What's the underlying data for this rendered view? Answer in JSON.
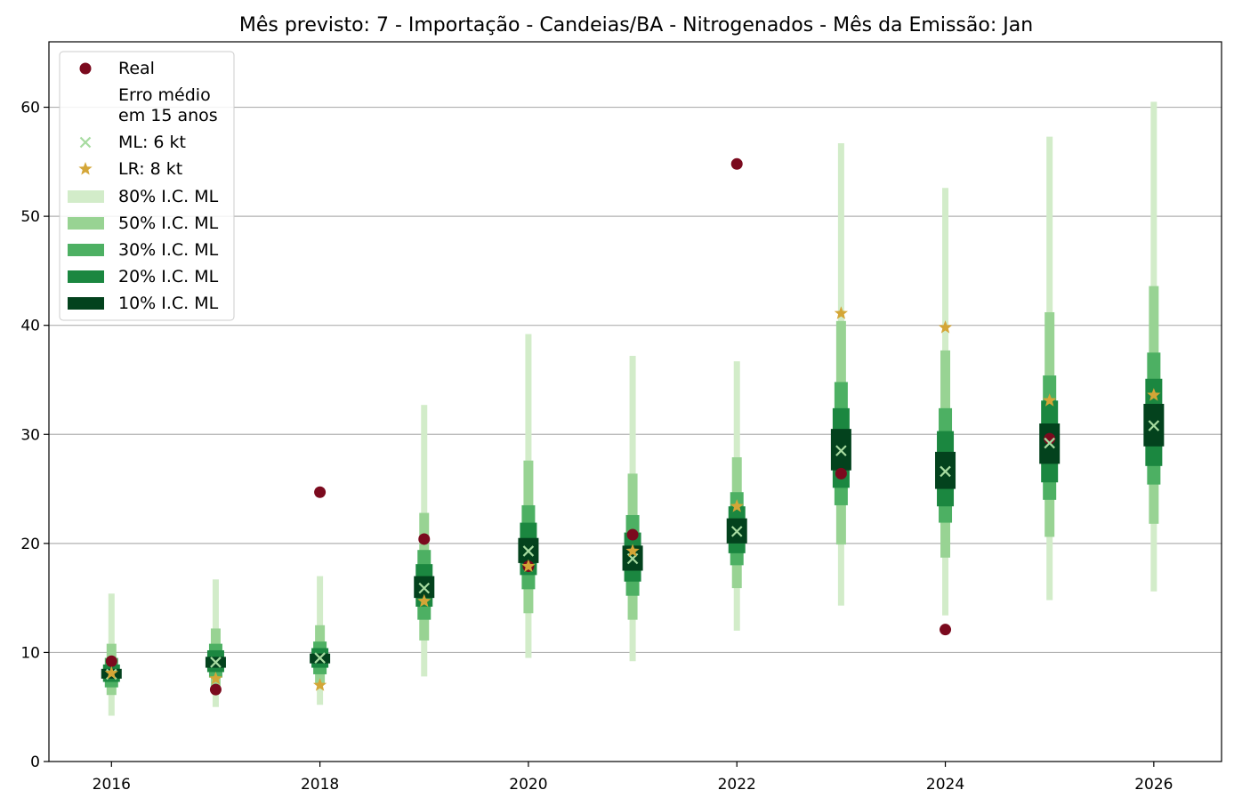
{
  "chart_data": {
    "type": "scatter",
    "title": "Mês previsto: 7 - Importação - Candeias/BA - Nitrogenados - Mês da Emissão: Jan",
    "xlabel": "",
    "ylabel": "",
    "xlim": [
      2015.4,
      2026.65
    ],
    "ylim": [
      0,
      66
    ],
    "x_ticks": [
      2016,
      2018,
      2020,
      2022,
      2024,
      2026
    ],
    "y_ticks": [
      0,
      10,
      20,
      30,
      40,
      50,
      60
    ],
    "grid": "y",
    "legend_position": "top-left",
    "years": [
      2016,
      2017,
      2018,
      2019,
      2020,
      2021,
      2022,
      2023,
      2024,
      2025,
      2026
    ],
    "real": [
      9.2,
      6.6,
      24.7,
      20.4,
      17.9,
      20.8,
      54.8,
      26.4,
      12.1,
      29.6,
      null
    ],
    "ml": [
      8.0,
      9.1,
      9.5,
      15.9,
      19.3,
      18.6,
      21.1,
      28.5,
      26.6,
      29.2,
      30.8
    ],
    "lr": [
      8.1,
      7.6,
      7.0,
      14.7,
      17.9,
      19.3,
      23.4,
      41.1,
      39.8,
      33.1,
      33.6
    ],
    "intervals": [
      {
        "level": "80%",
        "low": [
          4.2,
          5.0,
          5.2,
          7.8,
          9.5,
          9.2,
          12.0,
          14.3,
          13.4,
          14.8,
          15.6
        ],
        "high": [
          15.4,
          16.7,
          17.0,
          32.7,
          39.2,
          37.2,
          36.7,
          56.7,
          52.6,
          57.3,
          60.5
        ]
      },
      {
        "level": "50%",
        "low": [
          6.1,
          6.8,
          7.1,
          11.1,
          13.6,
          13.0,
          15.9,
          19.9,
          18.7,
          20.6,
          21.8
        ],
        "high": [
          10.8,
          12.2,
          12.5,
          22.8,
          27.6,
          26.4,
          27.9,
          40.4,
          37.7,
          41.2,
          43.6
        ]
      },
      {
        "level": "30%",
        "low": [
          6.8,
          7.7,
          8.0,
          13.0,
          15.8,
          15.2,
          18.0,
          23.5,
          21.9,
          24.0,
          25.4
        ],
        "high": [
          9.5,
          10.8,
          11.0,
          19.4,
          23.5,
          22.6,
          24.7,
          34.8,
          32.4,
          35.4,
          37.5
        ]
      },
      {
        "level": "20%",
        "low": [
          7.3,
          8.2,
          8.6,
          14.2,
          17.1,
          16.5,
          19.1,
          25.1,
          23.4,
          25.6,
          27.1
        ],
        "high": [
          8.9,
          10.2,
          10.4,
          18.1,
          21.9,
          21.0,
          23.4,
          32.4,
          30.3,
          33.1,
          35.1
        ]
      },
      {
        "level": "10%",
        "low": [
          7.6,
          8.6,
          9.0,
          15.0,
          18.2,
          17.5,
          20.0,
          26.7,
          25.0,
          27.3,
          28.9
        ],
        "high": [
          8.5,
          9.6,
          9.9,
          17.0,
          20.5,
          19.8,
          22.3,
          30.5,
          28.4,
          31.0,
          32.8
        ]
      }
    ],
    "legend": {
      "real": "Real",
      "note": [
        "Erro médio",
        "em 15 anos"
      ],
      "ml": "ML: 6 kt",
      "lr": "LR: 8 kt",
      "intervals": [
        "80% I.C. ML",
        "50% I.C. ML",
        "30% I.C. ML",
        "20% I.C. ML",
        "10% I.C. ML"
      ]
    },
    "colors": {
      "real": "#7b0a1e",
      "ml": "#a7dba0",
      "lr": "#d4a637",
      "intervals": [
        "#d2ecc9",
        "#98d393",
        "#4db063",
        "#1b8740",
        "#03421d"
      ],
      "grid": "#b0b0b0"
    }
  }
}
